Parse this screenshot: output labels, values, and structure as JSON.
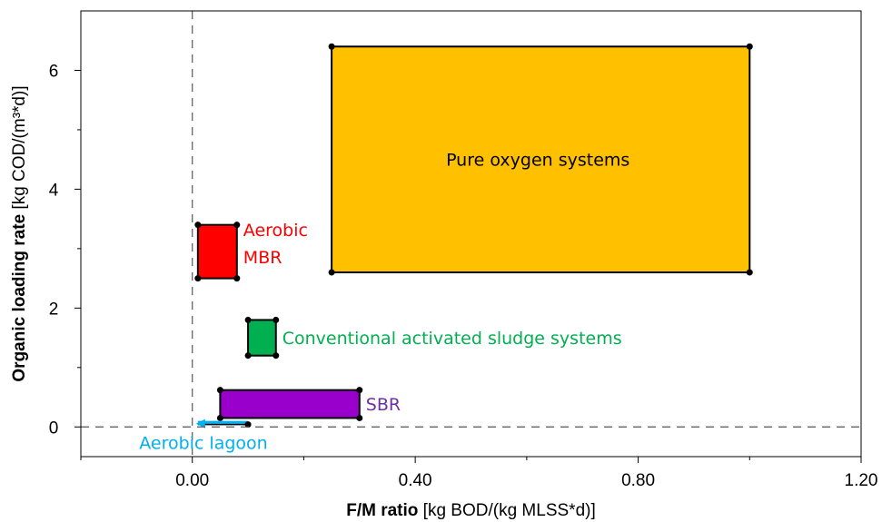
{
  "chart_data": {
    "type": "scatter",
    "title": "",
    "xlabel_bold": "F/M ratio",
    "xlabel_unit": " [kg BOD/(kg MLSS*d)]",
    "ylabel_bold": "Organic loading rate",
    "ylabel_unit": " [kg COD/(m³*d)]",
    "xlim": [
      -0.2,
      1.2
    ],
    "ylim": [
      -0.5,
      7.0
    ],
    "xticks": [
      0.0,
      0.4,
      0.8,
      1.2
    ],
    "xtick_labels": [
      "0.00",
      "0.40",
      "0.80",
      "1.20"
    ],
    "yticks": [
      0,
      2,
      4,
      6
    ],
    "ytick_labels": [
      "0",
      "2",
      "4",
      "6"
    ],
    "reference_lines": {
      "x": 0,
      "y": 0,
      "style": "dashed"
    },
    "grid": false,
    "regions": [
      {
        "name": "Pure oxygen systems",
        "x": [
          0.25,
          1.0
        ],
        "y": [
          2.6,
          6.4
        ],
        "color": "#FFC000",
        "label": "Pure oxygen systems",
        "label_color": "#000000"
      },
      {
        "name": "Aerobic MBR",
        "x": [
          0.01,
          0.08
        ],
        "y": [
          2.5,
          3.4
        ],
        "color": "#FF0000",
        "label_lines": [
          "Aerobic",
          "MBR"
        ],
        "label_color": "#FF0000"
      },
      {
        "name": "Conventional activated sludge systems",
        "x": [
          0.1,
          0.15
        ],
        "y": [
          1.2,
          1.8
        ],
        "color": "#00B050",
        "label": "Conventional activated sludge systems",
        "label_color": "#00B050"
      },
      {
        "name": "SBR",
        "x": [
          0.05,
          0.3
        ],
        "y": [
          0.15,
          0.62
        ],
        "color": "#9900CC",
        "label": "SBR",
        "label_color": "#7030A0"
      },
      {
        "name": "Aerobic lagoon",
        "x": [
          0.01,
          0.1
        ],
        "y": [
          0.04,
          0.04
        ],
        "color": "#00B0F0",
        "label": "Aerobic lagoon",
        "label_color": "#00B0F0"
      }
    ]
  }
}
